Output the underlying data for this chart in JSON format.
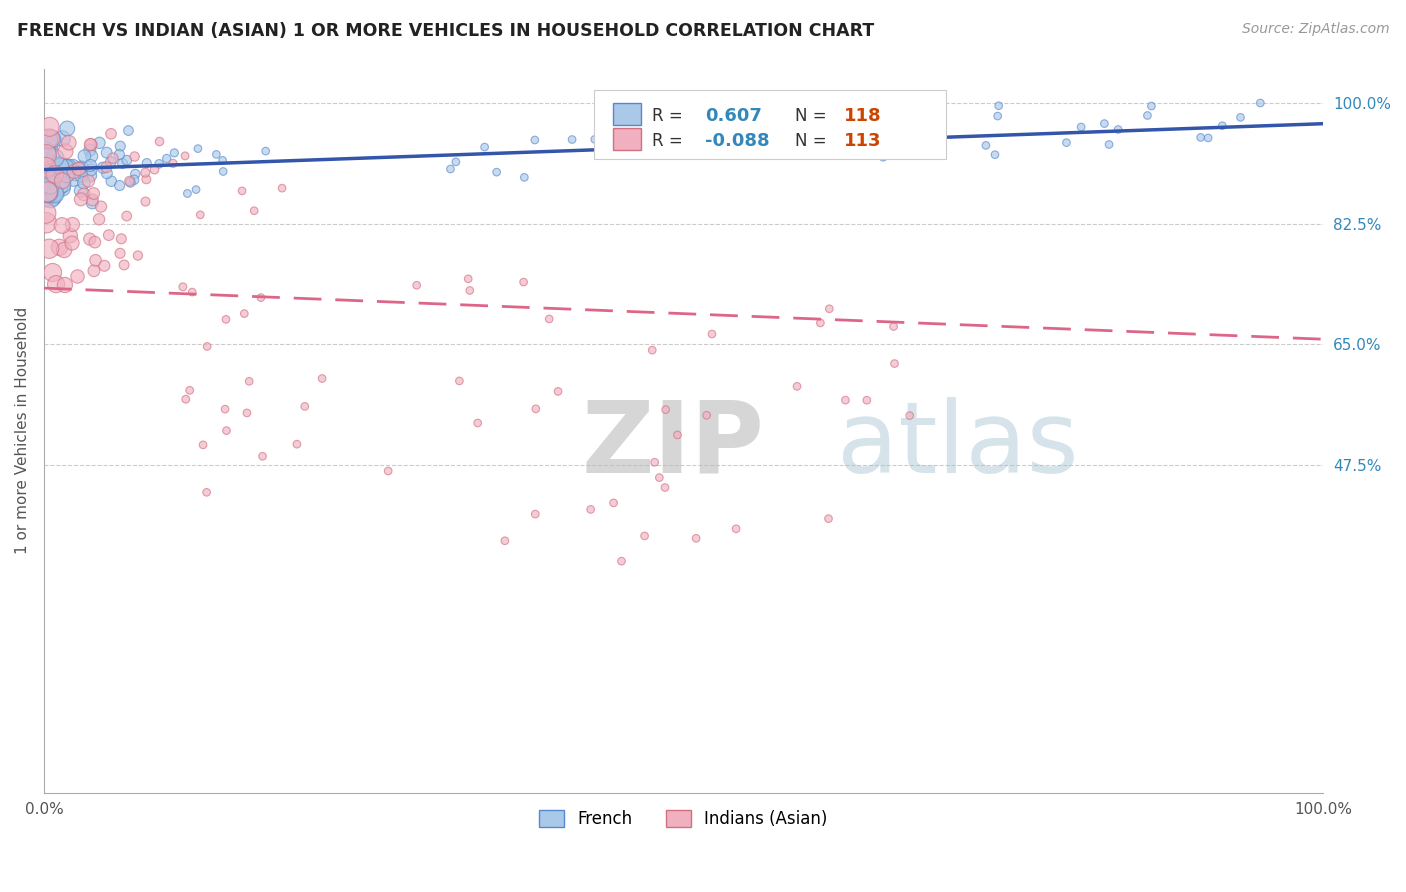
{
  "title": "FRENCH VS INDIAN (ASIAN) 1 OR MORE VEHICLES IN HOUSEHOLD CORRELATION CHART",
  "source": "Source: ZipAtlas.com",
  "ylabel": "1 or more Vehicles in Household",
  "xlim": [
    0.0,
    1.0
  ],
  "ylim": [
    0.0,
    1.05
  ],
  "ytick_values": [
    1.0,
    0.825,
    0.65,
    0.475
  ],
  "watermark_zip": "ZIP",
  "watermark_atlas": "atlas",
  "french_color": "#aac8e8",
  "french_edge": "#5588cc",
  "indian_color": "#f0b0c0",
  "indian_edge": "#d07080",
  "trendline_blue": "#3355aa",
  "trendline_pink": "#dd6688",
  "french_label": "French",
  "indian_label": "Indians (Asian)",
  "r_color": "#3388bb",
  "n_color": "#cc4400",
  "background": "#ffffff",
  "grid_color": "#cccccc",
  "R_french": 0.607,
  "N_french": 118,
  "R_indian": -0.088,
  "N_indian": 113
}
